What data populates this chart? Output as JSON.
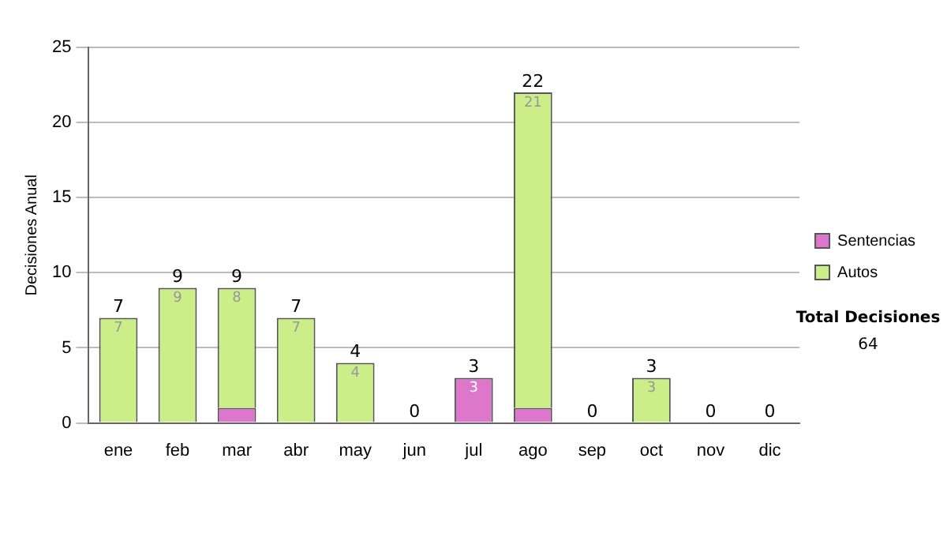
{
  "chart_data": {
    "type": "bar",
    "stacked": true,
    "ylabel": "Decisiones Anual",
    "categories": [
      "ene",
      "feb",
      "mar",
      "abr",
      "may",
      "jun",
      "jul",
      "ago",
      "sep",
      "oct",
      "nov",
      "dic"
    ],
    "series": [
      {
        "name": "Sentencias",
        "color": "#dd77cc",
        "values": [
          0,
          0,
          1,
          0,
          0,
          0,
          3,
          1,
          0,
          0,
          0,
          0
        ],
        "value_labels": [
          null,
          null,
          null,
          null,
          null,
          null,
          "3",
          null,
          null,
          null,
          null,
          null
        ]
      },
      {
        "name": "Autos",
        "color": "#ccee88",
        "values": [
          7,
          9,
          8,
          7,
          4,
          0,
          0,
          21,
          0,
          3,
          0,
          0
        ],
        "value_labels": [
          "7",
          "9",
          "8",
          "7",
          "4",
          null,
          null,
          "21",
          null,
          "3",
          null,
          null
        ]
      }
    ],
    "totals": [
      "7",
      "9",
      "9",
      "7",
      "4",
      "0",
      "3",
      "22",
      "0",
      "3",
      "0",
      "0"
    ],
    "ylim": [
      0,
      25
    ],
    "yticks": [
      0,
      5,
      10,
      15,
      20,
      25
    ],
    "grid": "y",
    "legend": "right",
    "annotations": [
      "Total Decisiones",
      "64"
    ]
  }
}
